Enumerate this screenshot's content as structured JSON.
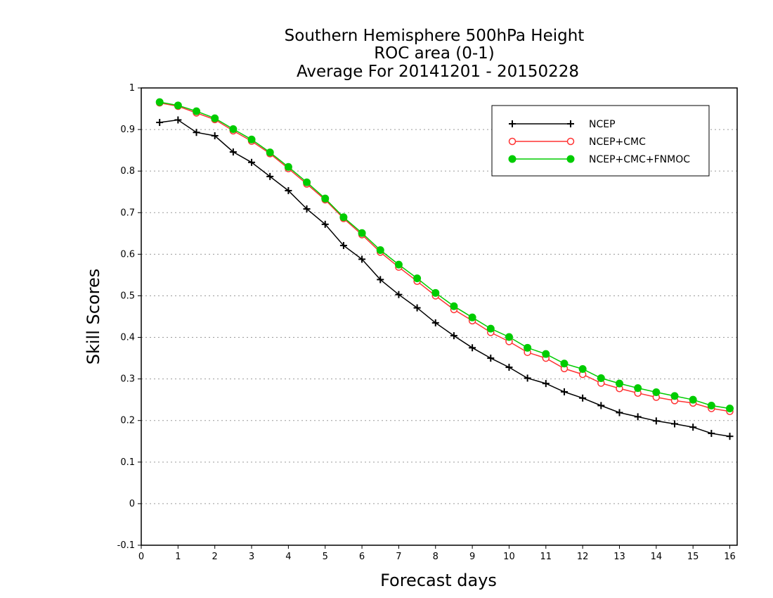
{
  "chart_data": {
    "type": "line",
    "title": [
      "Southern Hemisphere 500hPa Height",
      "ROC area (0-1)",
      "Average For 20141201 - 20150228"
    ],
    "xlabel": "Forecast days",
    "ylabel": "Skill Scores",
    "xlim": [
      0,
      16.2
    ],
    "ylim": [
      -0.1,
      1.0
    ],
    "xticks": [
      0,
      1,
      2,
      3,
      4,
      5,
      6,
      7,
      8,
      9,
      10,
      11,
      12,
      13,
      14,
      15,
      16
    ],
    "yticks": [
      -0.1,
      0,
      0.1,
      0.2,
      0.3,
      0.4,
      0.5,
      0.6,
      0.7,
      0.8,
      0.9,
      1
    ],
    "ytick_labels": [
      "-0.1",
      "0",
      "0.1",
      "0.2",
      "0.3",
      "0.4",
      "0.5",
      "0.6",
      "0.7",
      "0.8",
      "0.9",
      "1"
    ],
    "grid": "horizontal dotted",
    "legend_position": "top-right",
    "x": [
      0.5,
      1,
      1.5,
      2,
      2.5,
      3,
      3.5,
      4,
      4.5,
      5,
      5.5,
      6,
      6.5,
      7,
      7.5,
      8,
      8.5,
      9,
      9.5,
      10,
      10.5,
      11,
      11.5,
      12,
      12.5,
      13,
      13.5,
      14,
      14.5,
      15,
      15.5,
      16
    ],
    "series": [
      {
        "name": "NCEP",
        "color": "#000000",
        "marker": "plus",
        "values": [
          0.917,
          0.923,
          0.893,
          0.885,
          0.846,
          0.821,
          0.787,
          0.753,
          0.709,
          0.672,
          0.621,
          0.588,
          0.539,
          0.503,
          0.471,
          0.435,
          0.404,
          0.375,
          0.35,
          0.328,
          0.302,
          0.289,
          0.269,
          0.254,
          0.236,
          0.219,
          0.209,
          0.199,
          0.192,
          0.184,
          0.169,
          0.162
        ]
      },
      {
        "name": "NCEP+CMC",
        "color": "#ff3333",
        "marker": "open-circle",
        "values": [
          0.964,
          0.956,
          0.94,
          0.924,
          0.897,
          0.872,
          0.842,
          0.806,
          0.769,
          0.731,
          0.686,
          0.647,
          0.605,
          0.569,
          0.535,
          0.5,
          0.467,
          0.44,
          0.412,
          0.39,
          0.364,
          0.35,
          0.325,
          0.311,
          0.29,
          0.277,
          0.266,
          0.256,
          0.248,
          0.242,
          0.229,
          0.222
        ]
      },
      {
        "name": "NCEP+CMC+FNMOC",
        "color": "#00cc00",
        "marker": "filled-circle",
        "values": [
          0.966,
          0.958,
          0.944,
          0.927,
          0.901,
          0.876,
          0.845,
          0.81,
          0.773,
          0.734,
          0.689,
          0.651,
          0.61,
          0.575,
          0.542,
          0.507,
          0.475,
          0.448,
          0.421,
          0.401,
          0.375,
          0.36,
          0.337,
          0.324,
          0.302,
          0.289,
          0.278,
          0.268,
          0.259,
          0.25,
          0.236,
          0.229
        ]
      }
    ]
  }
}
